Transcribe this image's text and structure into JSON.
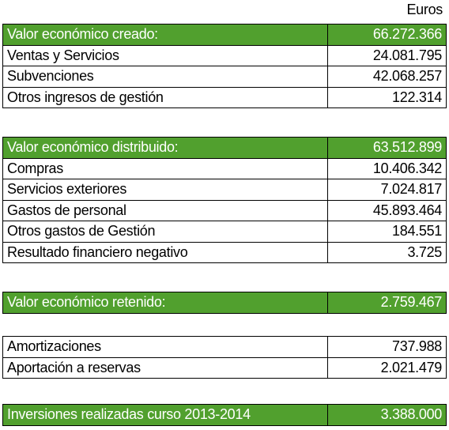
{
  "unit": "Euros",
  "blocks": [
    {
      "header": {
        "label": "Valor económico creado:",
        "value": "66.272.366"
      },
      "rows": [
        [
          "Ventas y Servicios",
          "24.081.795"
        ],
        [
          "Subvenciones",
          "42.068.257"
        ],
        [
          "Otros ingresos de gestión",
          "122.314"
        ]
      ]
    },
    {
      "header": {
        "label": "Valor económico distribuido:",
        "value": "63.512.899"
      },
      "rows": [
        [
          "Compras",
          "10.406.342"
        ],
        [
          "Servicios exteriores",
          "7.024.817"
        ],
        [
          "Gastos de personal",
          "45.893.464"
        ],
        [
          "Otros gastos de Gestión",
          "184.551"
        ],
        [
          "Resultado financiero negativo",
          "3.725"
        ]
      ]
    },
    {
      "header": {
        "label": "Valor económico retenido:",
        "value": "2.759.467"
      },
      "rows": []
    },
    {
      "rows": [
        [
          "Amortizaciones",
          "737.988"
        ],
        [
          "Aportación a reservas",
          "2.021.479"
        ]
      ]
    },
    {
      "header": {
        "label": "Inversiones realizadas curso 2013-2014",
        "value": "3.388.000"
      },
      "rows": []
    }
  ]
}
